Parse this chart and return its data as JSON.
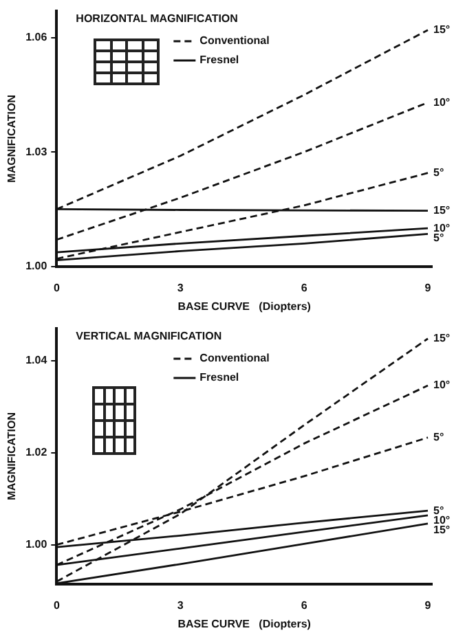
{
  "chart_data": [
    {
      "type": "line",
      "title": "HORIZONTAL MAGNIFICATION",
      "xlabel": "BASE CURVE   (Diopters)",
      "ylabel": "MAGNIFICATION",
      "xlim": [
        0,
        9.1
      ],
      "xticks": [
        0,
        3,
        6,
        9
      ],
      "ylim": [
        1.0,
        1.067
      ],
      "yticks": [
        {
          "value": 1.0,
          "label": "1.00"
        },
        {
          "value": 1.03,
          "label": "1.03"
        },
        {
          "value": 1.06,
          "label": "1.06"
        }
      ],
      "grid": false,
      "legend": false,
      "marker": "none",
      "annotations": [
        "Conventional",
        "Fresnel"
      ],
      "x": [
        0,
        3,
        6,
        9
      ],
      "series": [
        {
          "name": "15°",
          "color": "#111111",
          "line_style": "dashed",
          "values": [
            1.015,
            1.029,
            1.045,
            1.062
          ]
        },
        {
          "name": "10°",
          "color": "#111111",
          "line_style": "dashed",
          "values": [
            1.007,
            1.018,
            1.03,
            1.043
          ]
        },
        {
          "name": "5°",
          "color": "#111111",
          "line_style": "dashed",
          "values": [
            1.002,
            1.009,
            1.016,
            1.0245
          ]
        },
        {
          "name": "15°",
          "color": "#111111",
          "line_style": "solid",
          "values": [
            1.015,
            1.0148,
            1.0147,
            1.0146
          ]
        },
        {
          "name": "10°",
          "color": "#111111",
          "line_style": "solid",
          "values": [
            1.0037,
            1.006,
            1.008,
            1.01
          ]
        },
        {
          "name": "5°",
          "color": "#111111",
          "line_style": "solid",
          "values": [
            1.0016,
            1.004,
            1.006,
            1.0085
          ]
        }
      ]
    },
    {
      "type": "line",
      "title": "VERTICAL MAGNIFICATION",
      "xlabel": "BASE CURVE   (Diopters)",
      "ylabel": "MAGNIFICATION",
      "xlim": [
        0,
        9.1
      ],
      "xticks": [
        0,
        3,
        6,
        9
      ],
      "ylim": [
        0.9915,
        1.047
      ],
      "yticks": [
        {
          "value": 1.0,
          "label": "1.00"
        },
        {
          "value": 1.02,
          "label": "1.02"
        },
        {
          "value": 1.04,
          "label": "1.04"
        }
      ],
      "grid": false,
      "legend": false,
      "marker": "none",
      "annotations": [
        "Conventional",
        "Fresnel"
      ],
      "x": [
        0,
        3,
        6,
        9
      ],
      "series": [
        {
          "name": "15°",
          "color": "#111111",
          "line_style": "dashed",
          "values": [
            0.992,
            1.0067,
            1.026,
            1.0448
          ]
        },
        {
          "name": "10°",
          "color": "#111111",
          "line_style": "dashed",
          "values": [
            0.9956,
            1.0077,
            1.022,
            1.0346
          ]
        },
        {
          "name": "5°",
          "color": "#111111",
          "line_style": "dashed",
          "values": [
            1.0,
            1.0072,
            1.0149,
            1.0233
          ]
        },
        {
          "name": "5°",
          "color": "#111111",
          "line_style": "solid",
          "values": [
            0.9995,
            1.002,
            1.0048,
            1.0074
          ]
        },
        {
          "name": "10°",
          "color": "#111111",
          "line_style": "solid",
          "values": [
            0.9956,
            0.9992,
            1.0028,
            1.0064
          ]
        },
        {
          "name": "15°",
          "color": "#111111",
          "line_style": "solid",
          "values": [
            0.9916,
            0.9958,
            1.0002,
            1.0046
          ]
        }
      ]
    }
  ]
}
